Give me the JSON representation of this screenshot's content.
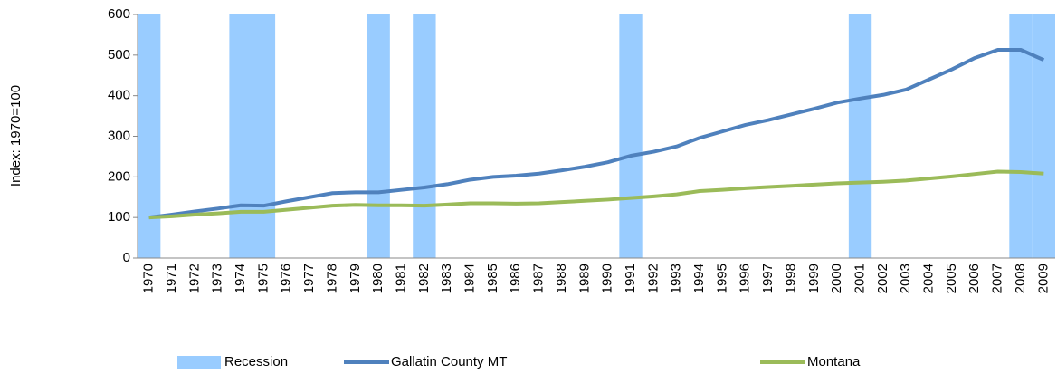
{
  "chart_data": {
    "type": "line",
    "y_axis_label": "Index: 1970=100",
    "categories": [
      "1970",
      "1971",
      "1972",
      "1973",
      "1974",
      "1975",
      "1976",
      "1977",
      "1978",
      "1979",
      "1980",
      "1981",
      "1982",
      "1983",
      "1984",
      "1985",
      "1986",
      "1987",
      "1988",
      "1989",
      "1990",
      "1991",
      "1992",
      "1993",
      "1994",
      "1995",
      "1996",
      "1997",
      "1998",
      "1999",
      "2000",
      "2001",
      "2002",
      "2003",
      "2004",
      "2005",
      "2006",
      "2007",
      "2008",
      "2009"
    ],
    "series": [
      {
        "name": "Recession",
        "type": "bar",
        "color": "#99ccff",
        "values": [
          600,
          null,
          null,
          null,
          600,
          600,
          null,
          null,
          null,
          null,
          600,
          null,
          600,
          null,
          null,
          null,
          null,
          null,
          null,
          null,
          null,
          600,
          null,
          null,
          null,
          null,
          null,
          null,
          null,
          null,
          null,
          600,
          null,
          null,
          null,
          null,
          null,
          null,
          600,
          600
        ]
      },
      {
        "name": "Gallatin County MT",
        "type": "line",
        "color": "#4f81bd",
        "values": [
          100,
          107,
          115,
          122,
          130,
          129,
          140,
          150,
          160,
          162,
          162,
          168,
          174,
          182,
          193,
          200,
          203,
          208,
          216,
          225,
          236,
          252,
          262,
          275,
          296,
          312,
          328,
          340,
          354,
          368,
          383,
          393,
          402,
          415,
          440,
          465,
          493,
          513,
          513,
          488
        ]
      },
      {
        "name": "Montana",
        "type": "line",
        "color": "#9bbb59",
        "values": [
          100,
          103,
          107,
          110,
          114,
          114,
          119,
          124,
          129,
          131,
          130,
          130,
          129,
          132,
          135,
          135,
          134,
          135,
          138,
          141,
          144,
          148,
          152,
          157,
          165,
          168,
          172,
          175,
          178,
          181,
          184,
          186,
          188,
          191,
          196,
          201,
          207,
          213,
          212,
          208
        ]
      }
    ],
    "ylim": [
      0,
      600
    ],
    "yticks": [
      0,
      100,
      200,
      300,
      400,
      500,
      600
    ],
    "legend": "bottom"
  }
}
